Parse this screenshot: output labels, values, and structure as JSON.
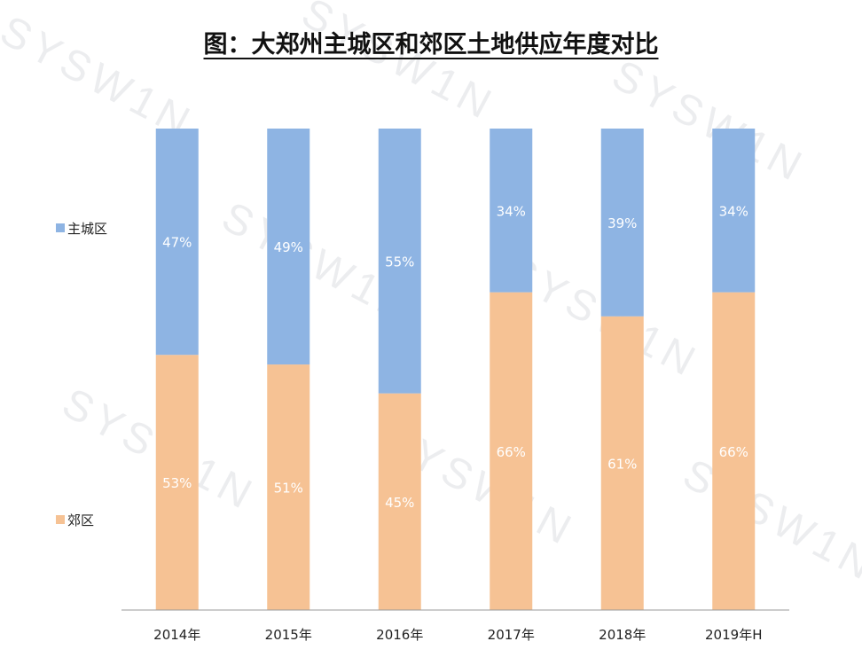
{
  "title": "图：大郑州主城区和郊区土地供应年度对比",
  "watermark": "SYSW1N",
  "colors": {
    "main_district": "#8eb4e3",
    "suburb": "#f6c294",
    "axis": "#999999",
    "label_text": "#ffffff",
    "tick_text": "#222222"
  },
  "chart_data": {
    "type": "bar",
    "stacked": true,
    "percent": true,
    "categories": [
      "2014年",
      "2015年",
      "2016年",
      "2017年",
      "2018年",
      "2019年H"
    ],
    "series": [
      {
        "name": "主城区",
        "values": [
          47,
          49,
          55,
          34,
          39,
          34
        ],
        "labels": [
          "47%",
          "49%",
          "55%",
          "34%",
          "39%",
          "34%"
        ]
      },
      {
        "name": "郊区",
        "values": [
          53,
          51,
          45,
          66,
          61,
          66
        ],
        "labels": [
          "53%",
          "51%",
          "45%",
          "66%",
          "61%",
          "66%"
        ]
      }
    ],
    "ylim": [
      0,
      100
    ],
    "legend_position": "left",
    "grid": false
  }
}
